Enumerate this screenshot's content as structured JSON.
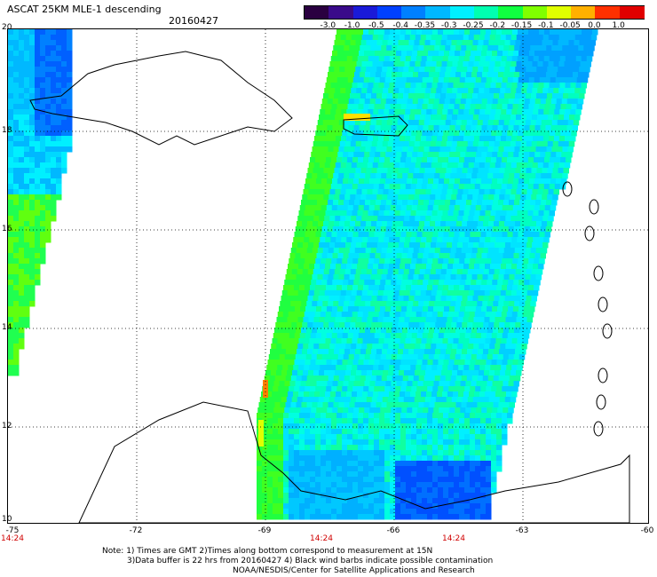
{
  "header": {
    "title": "ASCAT 25KM MLE-1 descending",
    "date": "20160427"
  },
  "colorbar": {
    "ticks": [
      "-3.0",
      "-1.0",
      "-0.5",
      "-0.4",
      "-0.35",
      "-0.3",
      "-0.25",
      "-0.2",
      "-0.15",
      "-0.1",
      "-0.05",
      "0.0",
      "1.0"
    ],
    "colors": [
      "#2a0040",
      "#3a0a8a",
      "#1a1ad8",
      "#0040ff",
      "#0080ff",
      "#00b8ff",
      "#00f0ff",
      "#00ffb0",
      "#10ff40",
      "#80ff00",
      "#e0ff00",
      "#ffb000",
      "#ff3000",
      "#e00000"
    ]
  },
  "map": {
    "lat_labels": [
      "20",
      "18",
      "16",
      "14",
      "12",
      "10"
    ],
    "lon_labels": [
      "-75",
      "-72",
      "-69",
      "-66",
      "-63",
      "-60"
    ],
    "time_labels": [
      "14:24",
      "14:24",
      "14:24"
    ],
    "time_color": "#d00000",
    "grid": "dotted"
  },
  "notes": {
    "line1": "Note: 1) Times are GMT 2)Times along bottom correspond to measurement at 15N",
    "line2": "3)Data buffer is 22 hrs from 20160427 4) Black wind barbs indicate possible contamination",
    "line3": "NOAA/NESDIS/Center for Satellite Applications and Research"
  }
}
